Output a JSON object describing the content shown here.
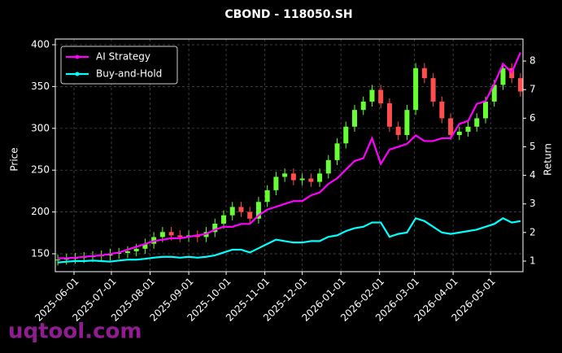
{
  "chart_data": {
    "type": "candlestick",
    "title": "CBOND - 118050.SH",
    "ylabel": "Price",
    "y2label": "Return",
    "x": [
      "2025-05-19",
      "2025-05-26",
      "2025-06-02",
      "2025-06-09",
      "2025-06-16",
      "2025-06-23",
      "2025-06-30",
      "2025-07-07",
      "2025-07-14",
      "2025-07-21",
      "2025-07-28",
      "2025-08-04",
      "2025-08-11",
      "2025-08-18",
      "2025-08-25",
      "2025-09-01",
      "2025-09-08",
      "2025-09-15",
      "2025-09-22",
      "2025-09-29",
      "2025-10-06",
      "2025-10-13",
      "2025-10-20",
      "2025-10-27",
      "2025-11-03",
      "2025-11-10",
      "2025-11-17",
      "2025-11-24",
      "2025-12-01",
      "2025-12-08",
      "2025-12-15",
      "2025-12-22",
      "2025-12-29",
      "2026-01-05",
      "2026-01-12",
      "2026-01-19",
      "2026-01-26",
      "2026-02-02",
      "2026-02-09",
      "2026-02-16",
      "2026-02-23",
      "2026-03-02",
      "2026-03-09",
      "2026-03-16",
      "2026-03-23",
      "2026-03-30",
      "2026-04-06",
      "2026-04-13",
      "2026-04-20",
      "2026-04-27",
      "2026-05-04",
      "2026-05-11",
      "2026-05-18",
      "2026-05-25"
    ],
    "open": [
      142,
      143,
      144,
      145,
      146,
      147,
      148,
      150,
      151,
      153,
      156,
      162,
      170,
      176,
      172,
      170,
      172,
      170,
      176,
      186,
      196,
      206,
      200,
      192,
      212,
      226,
      242,
      246,
      238,
      240,
      236,
      246,
      262,
      282,
      302,
      322,
      332,
      346,
      330,
      302,
      292,
      322,
      372,
      360,
      332,
      312,
      292,
      296,
      302,
      312,
      332,
      352,
      372,
      360
    ],
    "high": [
      149,
      150,
      151,
      152,
      153,
      154,
      156,
      157,
      159,
      162,
      168,
      176,
      182,
      182,
      178,
      178,
      178,
      182,
      192,
      202,
      212,
      212,
      206,
      218,
      232,
      248,
      252,
      252,
      246,
      246,
      252,
      268,
      288,
      308,
      328,
      338,
      352,
      352,
      336,
      308,
      328,
      378,
      378,
      366,
      338,
      318,
      302,
      308,
      318,
      338,
      358,
      378,
      378,
      366
    ],
    "low": [
      136,
      137,
      138,
      139,
      140,
      141,
      142,
      144,
      145,
      147,
      150,
      156,
      164,
      166,
      164,
      164,
      164,
      164,
      170,
      180,
      190,
      194,
      186,
      186,
      206,
      220,
      236,
      232,
      232,
      230,
      230,
      240,
      256,
      276,
      296,
      316,
      326,
      324,
      296,
      286,
      286,
      316,
      354,
      326,
      306,
      286,
      286,
      290,
      296,
      306,
      326,
      346,
      354,
      338
    ],
    "close": [
      143,
      144,
      145,
      146,
      147,
      148,
      150,
      151,
      153,
      156,
      162,
      170,
      176,
      172,
      170,
      172,
      170,
      176,
      186,
      196,
      206,
      200,
      192,
      212,
      226,
      242,
      246,
      238,
      240,
      236,
      246,
      262,
      282,
      302,
      322,
      332,
      346,
      330,
      302,
      292,
      322,
      372,
      360,
      332,
      312,
      292,
      296,
      302,
      312,
      332,
      352,
      372,
      360,
      344
    ],
    "up_color": "#66ff33",
    "down_color": "#ff4d4d",
    "series": [
      {
        "name": "AI Strategy",
        "color": "#ff00ff",
        "axis": "y2",
        "values": [
          1.1,
          1.1,
          1.12,
          1.15,
          1.18,
          1.2,
          1.25,
          1.3,
          1.4,
          1.5,
          1.6,
          1.7,
          1.75,
          1.8,
          1.8,
          1.85,
          1.9,
          1.95,
          2.1,
          2.2,
          2.2,
          2.3,
          2.3,
          2.6,
          2.8,
          2.9,
          3.0,
          3.1,
          3.1,
          3.3,
          3.4,
          3.7,
          3.9,
          4.2,
          4.5,
          4.6,
          5.3,
          4.4,
          4.9,
          5.0,
          5.1,
          5.4,
          5.2,
          5.2,
          5.3,
          5.3,
          5.8,
          5.9,
          6.5,
          6.6,
          7.2,
          7.9,
          7.6,
          8.3
        ]
      },
      {
        "name": "Buy-and-Hold",
        "color": "#00ffff",
        "axis": "y2",
        "values": [
          0.95,
          0.98,
          1.0,
          1.0,
          1.02,
          1.0,
          0.98,
          1.02,
          1.05,
          1.05,
          1.08,
          1.12,
          1.15,
          1.15,
          1.12,
          1.15,
          1.12,
          1.15,
          1.2,
          1.3,
          1.4,
          1.4,
          1.3,
          1.45,
          1.6,
          1.75,
          1.7,
          1.65,
          1.65,
          1.7,
          1.7,
          1.85,
          1.9,
          2.05,
          2.15,
          2.2,
          2.35,
          2.35,
          1.85,
          1.95,
          2.0,
          2.5,
          2.4,
          2.2,
          2.0,
          1.95,
          2.0,
          2.05,
          2.1,
          2.2,
          2.3,
          2.5,
          2.35,
          2.4
        ]
      }
    ],
    "xlim": [
      "2025-05-17",
      "2026-05-27"
    ],
    "xticks": [
      "2025-06-01",
      "2025-07-01",
      "2025-08-01",
      "2025-09-01",
      "2025-10-01",
      "2025-11-01",
      "2025-12-01",
      "2026-01-01",
      "2026-02-01",
      "2026-03-01",
      "2026-04-01",
      "2026-05-01"
    ],
    "ylim": [
      128.6,
      406.8
    ],
    "yticks": [
      150,
      200,
      250,
      300,
      350,
      400
    ],
    "y2lim": [
      0.63,
      8.77
    ],
    "y2ticks": [
      1,
      2,
      3,
      4,
      5,
      6,
      7,
      8
    ],
    "grid": true,
    "legend": "upper left",
    "watermark": "uqtool.com"
  }
}
